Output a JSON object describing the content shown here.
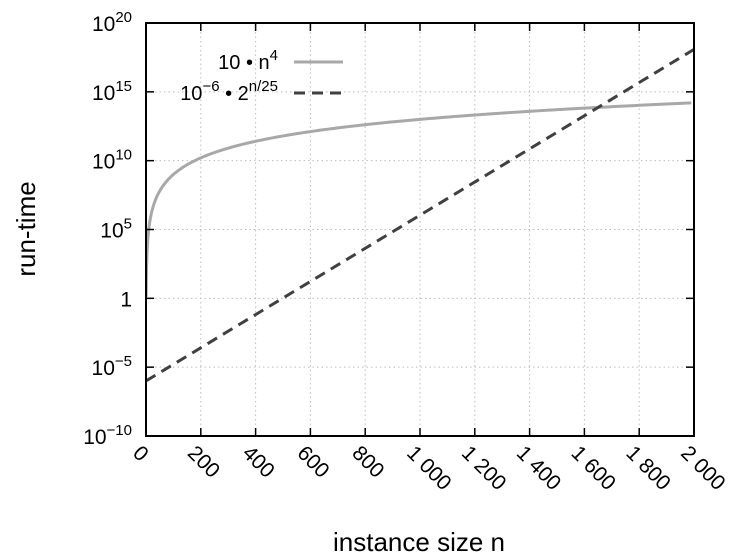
{
  "chart_data": {
    "type": "line",
    "xlabel": "instance size n",
    "ylabel": "run-time",
    "xlim": [
      0,
      2000
    ],
    "ylim": [
      1e-10,
      1e+20
    ],
    "y_scale": "log",
    "grid": true,
    "legend_position": "top-left",
    "x_ticks": [
      0,
      200,
      400,
      600,
      800,
      1000,
      1200,
      1400,
      1600,
      1800,
      2000
    ],
    "x_tick_labels": [
      "0",
      "200",
      "400",
      "600",
      "800",
      "1 000",
      "1 200",
      "1 400",
      "1 600",
      "1 800",
      "2 000"
    ],
    "y_ticks": [
      {
        "value": 1e-10,
        "base": "10",
        "exp": "−10"
      },
      {
        "value": 1e-05,
        "base": "10",
        "exp": "−5"
      },
      {
        "value": 1,
        "base": "1",
        "exp": ""
      },
      {
        "value": 100000.0,
        "base": "10",
        "exp": "5"
      },
      {
        "value": 10000000000.0,
        "base": "10",
        "exp": "10"
      },
      {
        "value": 1000000000000000.0,
        "base": "10",
        "exp": "15"
      },
      {
        "value": 1e+20,
        "base": "10",
        "exp": "20"
      }
    ],
    "series": [
      {
        "name": "10 • n^4",
        "label_parts": [
          {
            "text": "10 • n",
            "sup": false
          },
          {
            "text": "4",
            "sup": true
          }
        ],
        "color": "#a8a8a8",
        "dash": "solid",
        "x": [
          1,
          5,
          10,
          20,
          50,
          100,
          200,
          400,
          600,
          800,
          1000,
          1200,
          1400,
          1600,
          1800,
          2000
        ],
        "y": [
          10,
          6250,
          100000,
          1600000,
          62500000,
          1000000000,
          16000000000,
          256000000000,
          1296000000000,
          4096000000000,
          10000000000000,
          20736000000000,
          38416000000000,
          65536000000000,
          104976000000000,
          160000000000000
        ]
      },
      {
        "name": "10^−6 • 2^(n/25)",
        "label_parts": [
          {
            "text": "10",
            "sup": false
          },
          {
            "text": "−6",
            "sup": true
          },
          {
            "text": " • 2",
            "sup": false
          },
          {
            "text": "n/25",
            "sup": true
          }
        ],
        "color": "#404040",
        "dash": "dashed",
        "x": [
          0,
          500,
          1000,
          1500,
          2000
        ],
        "y": [
          1e-06,
          1.048576,
          1099511.6,
          1152921504606.8,
          1.2089258e+18
        ]
      }
    ]
  }
}
